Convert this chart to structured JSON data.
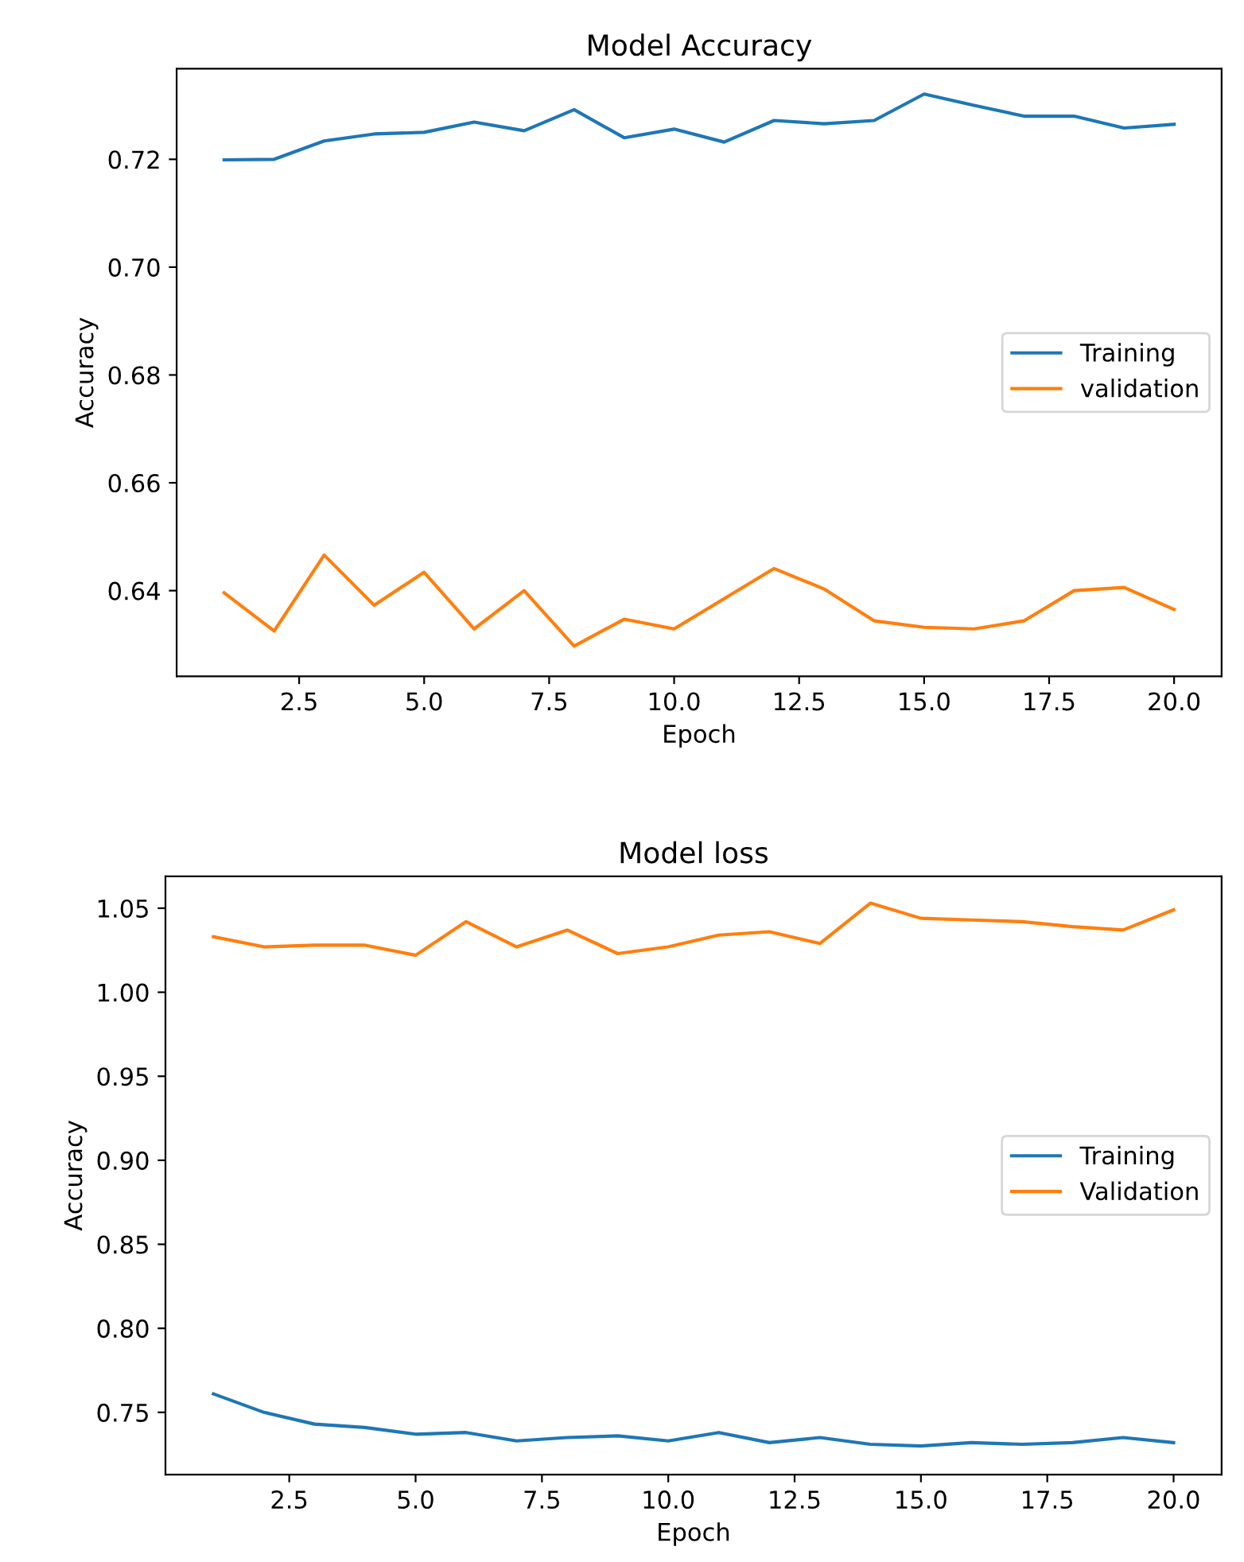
{
  "chart_data": [
    {
      "type": "line",
      "title": "Model Accuracy",
      "xlabel": "Epoch",
      "ylabel": "Accuracy",
      "legend": "right",
      "grid": false,
      "x": [
        1,
        2,
        3,
        4,
        5,
        6,
        7,
        8,
        9,
        10,
        11,
        12,
        13,
        14,
        15,
        16,
        17,
        18,
        19,
        20
      ],
      "xlim": [
        0.05,
        20.95
      ],
      "ylim": [
        0.6241,
        0.7368
      ],
      "xticks": [
        {
          "value": 2.5,
          "label": "2.5"
        },
        {
          "value": 5,
          "label": "5.0"
        },
        {
          "value": 7.5,
          "label": "7.5"
        },
        {
          "value": 10,
          "label": "10.0"
        },
        {
          "value": 12.5,
          "label": "12.5"
        },
        {
          "value": 15,
          "label": "15.0"
        },
        {
          "value": 17.5,
          "label": "17.5"
        },
        {
          "value": 20,
          "label": "20.0"
        }
      ],
      "yticks": [
        {
          "value": 0.64,
          "label": "0.64"
        },
        {
          "value": 0.66,
          "label": "0.66"
        },
        {
          "value": 0.68,
          "label": "0.68"
        },
        {
          "value": 0.7,
          "label": "0.70"
        },
        {
          "value": 0.72,
          "label": "0.72"
        }
      ],
      "series": [
        {
          "name": "Training",
          "color": "#1f77b4",
          "values": [
            0.7199,
            0.72,
            0.7234,
            0.7247,
            0.725,
            0.7269,
            0.7253,
            0.7292,
            0.724,
            0.7256,
            0.7232,
            0.7272,
            0.7266,
            0.7272,
            0.7321,
            0.73,
            0.728,
            0.728,
            0.7258,
            0.7265
          ]
        },
        {
          "name": "validation",
          "color": "#ff7f0e",
          "values": [
            0.6396,
            0.6325,
            0.6466,
            0.6373,
            0.6434,
            0.6329,
            0.64,
            0.6297,
            0.6347,
            0.6329,
            0.6385,
            0.6441,
            0.6403,
            0.6344,
            0.6332,
            0.6329,
            0.6344,
            0.64,
            0.6406,
            0.6365
          ]
        }
      ]
    },
    {
      "type": "line",
      "title": "Model loss",
      "xlabel": "Epoch",
      "ylabel": "Accuracy",
      "legend": "right",
      "grid": false,
      "x": [
        1,
        2,
        3,
        4,
        5,
        6,
        7,
        8,
        9,
        10,
        11,
        12,
        13,
        14,
        15,
        16,
        17,
        18,
        19,
        20
      ],
      "xlim": [
        0.05,
        20.95
      ],
      "ylim": [
        0.713,
        1.069
      ],
      "xticks": [
        {
          "value": 2.5,
          "label": "2.5"
        },
        {
          "value": 5,
          "label": "5.0"
        },
        {
          "value": 7.5,
          "label": "7.5"
        },
        {
          "value": 10,
          "label": "10.0"
        },
        {
          "value": 12.5,
          "label": "12.5"
        },
        {
          "value": 15,
          "label": "15.0"
        },
        {
          "value": 17.5,
          "label": "17.5"
        },
        {
          "value": 20,
          "label": "20.0"
        }
      ],
      "yticks": [
        {
          "value": 0.75,
          "label": "0.75"
        },
        {
          "value": 0.8,
          "label": "0.80"
        },
        {
          "value": 0.85,
          "label": "0.85"
        },
        {
          "value": 0.9,
          "label": "0.90"
        },
        {
          "value": 0.95,
          "label": "0.95"
        },
        {
          "value": 1.0,
          "label": "1.00"
        },
        {
          "value": 1.05,
          "label": "1.05"
        }
      ],
      "series": [
        {
          "name": "Training",
          "color": "#1f77b4",
          "values": [
            0.761,
            0.75,
            0.743,
            0.741,
            0.737,
            0.738,
            0.733,
            0.735,
            0.736,
            0.733,
            0.738,
            0.732,
            0.735,
            0.731,
            0.73,
            0.732,
            0.731,
            0.732,
            0.735,
            0.732
          ]
        },
        {
          "name": "Validation",
          "color": "#ff7f0e",
          "values": [
            1.033,
            1.027,
            1.028,
            1.028,
            1.022,
            1.042,
            1.027,
            1.037,
            1.023,
            1.027,
            1.034,
            1.036,
            1.029,
            1.053,
            1.044,
            1.043,
            1.042,
            1.039,
            1.037,
            1.049
          ]
        }
      ]
    }
  ]
}
